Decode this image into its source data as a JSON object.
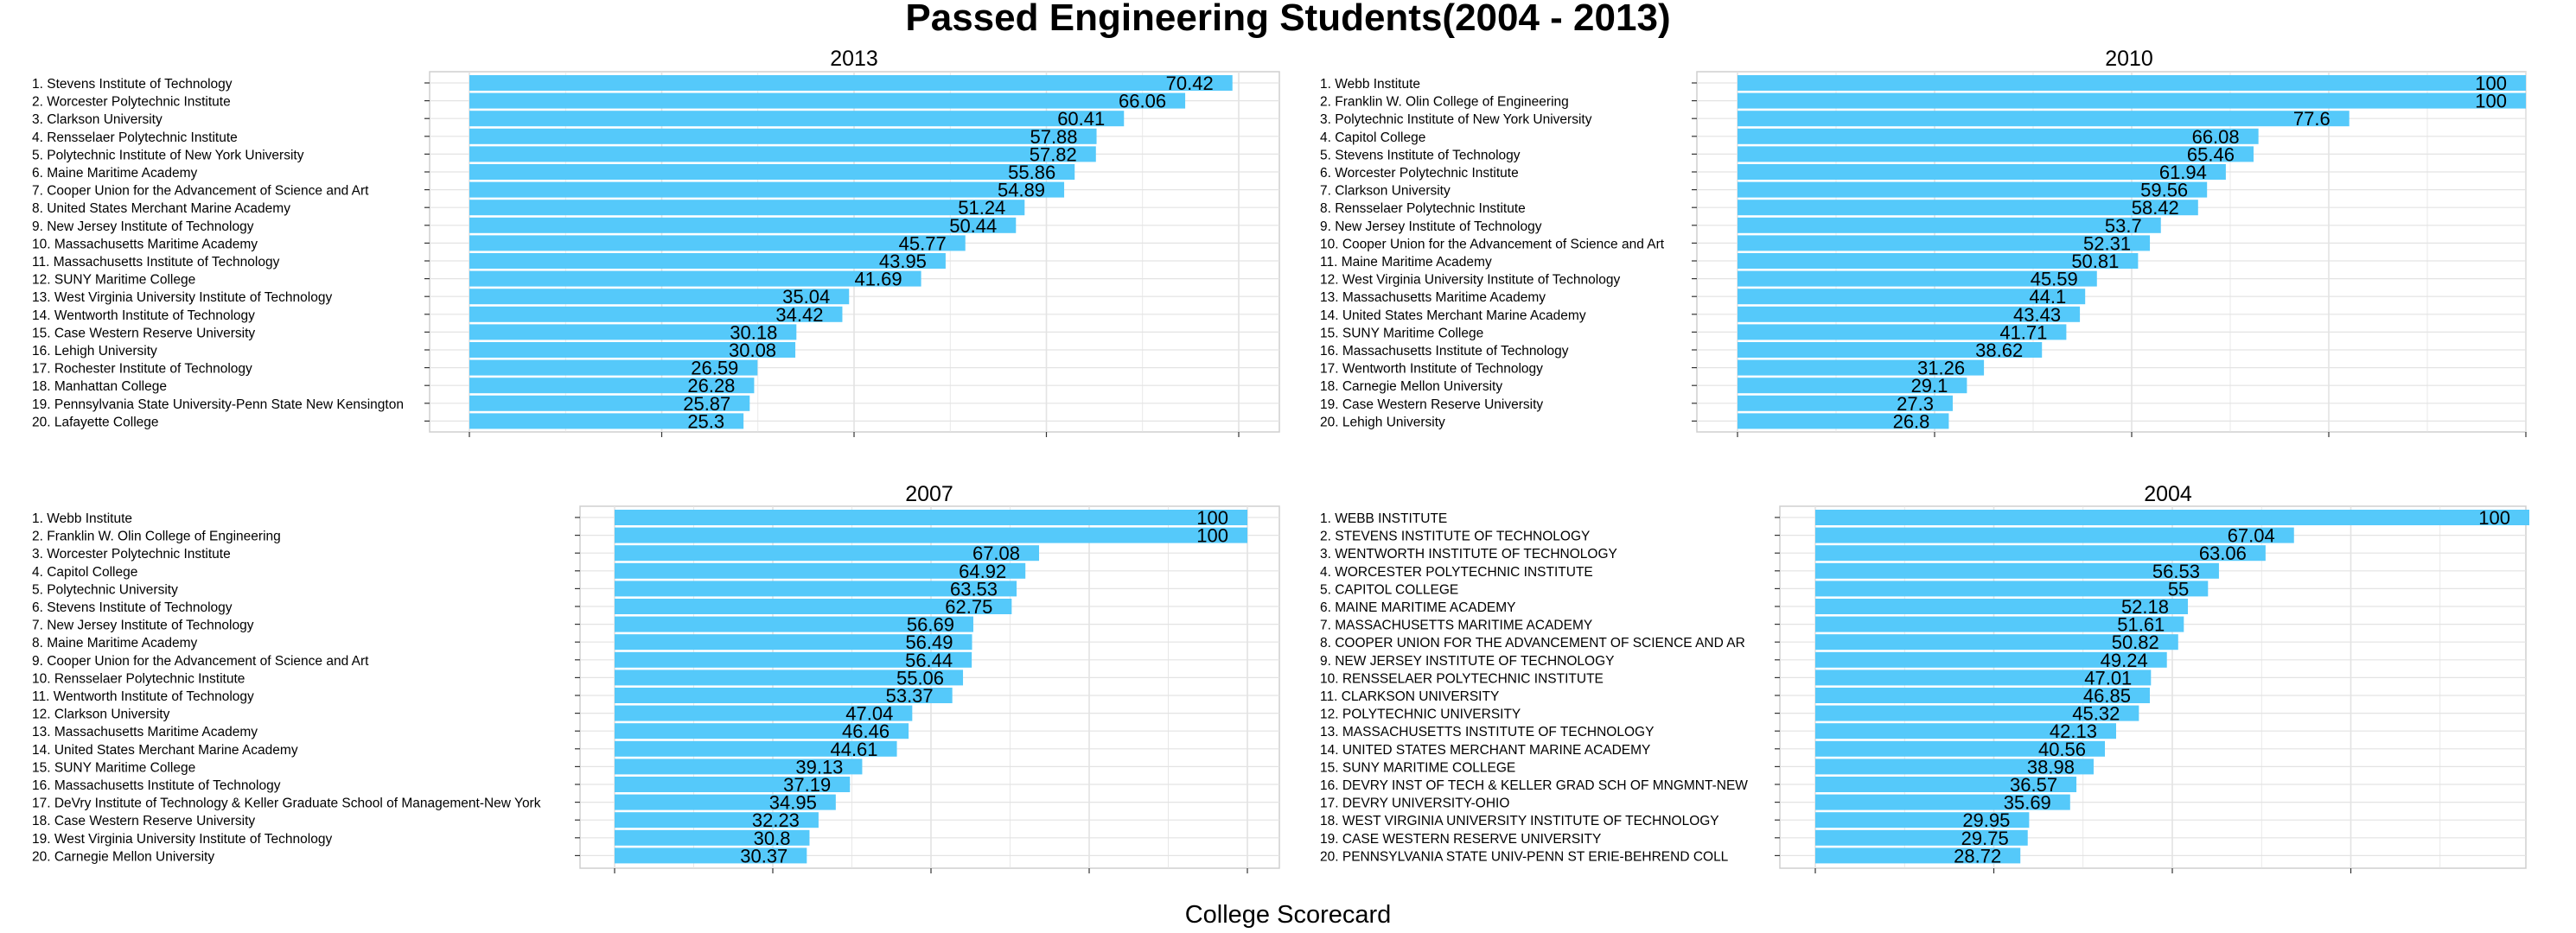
{
  "title": "Passed Engineering Students(2004 - 2013)",
  "caption": "College Scorecard",
  "colors": {
    "bar": "#55c9fa",
    "grid": "#e3e3e3",
    "panel_border": "#cfcfcf",
    "text": "#000000"
  },
  "chart_data": [
    {
      "type": "bar",
      "orientation": "horizontal",
      "title": "2013",
      "grid": true,
      "xlim": [
        0,
        71
      ],
      "categories": [
        "1. Stevens Institute of Technology",
        "2. Worcester Polytechnic Institute",
        "3. Clarkson University",
        "4. Rensselaer Polytechnic Institute",
        "5. Polytechnic Institute of New York University",
        "6. Maine Maritime Academy",
        "7. Cooper Union for the Advancement of Science and Art",
        "8. United States Merchant Marine Academy",
        "9. New Jersey Institute of Technology",
        "10. Massachusetts Maritime Academy",
        "11. Massachusetts Institute of Technology",
        "12. SUNY Maritime College",
        "13. West Virginia University Institute of Technology",
        "14. Wentworth Institute of Technology",
        "15. Case Western Reserve University",
        "16. Lehigh University",
        "17. Rochester Institute of Technology",
        "18. Manhattan College",
        "19. Pennsylvania State University-Penn State New Kensington",
        "20. Lafayette College"
      ],
      "values": [
        70.42,
        66.06,
        60.41,
        57.88,
        57.82,
        55.86,
        54.89,
        51.24,
        50.44,
        45.77,
        43.95,
        41.69,
        35.04,
        34.42,
        30.18,
        30.08,
        26.59,
        26.28,
        25.87,
        25.3
      ],
      "labels": [
        "70.42",
        "66.06",
        "60.41",
        "57.88",
        "57.82",
        "55.86",
        "54.89",
        "51.24",
        "50.44",
        "45.77",
        "43.95",
        "41.69",
        "35.04",
        "34.42",
        "30.18",
        "30.08",
        "26.59",
        "26.28",
        "25.87",
        "25.3"
      ]
    },
    {
      "type": "bar",
      "orientation": "horizontal",
      "title": "2010",
      "grid": true,
      "xlim": [
        0,
        100
      ],
      "categories": [
        "1. Webb Institute",
        "2. Franklin W. Olin College of Engineering",
        "3. Polytechnic Institute of New York University",
        "4. Capitol College",
        "5. Stevens Institute of Technology",
        "6. Worcester Polytechnic Institute",
        "7. Clarkson University",
        "8. Rensselaer Polytechnic Institute",
        "9. New Jersey Institute of Technology",
        "10. Cooper Union for the Advancement of Science and Art",
        "11. Maine Maritime Academy",
        "12. West Virginia University Institute of Technology",
        "13. Massachusetts Maritime Academy",
        "14. United States Merchant Marine Academy",
        "15. SUNY Maritime College",
        "16. Massachusetts Institute of Technology",
        "17. Wentworth Institute of Technology",
        "18. Carnegie Mellon University",
        "19. Case Western Reserve University",
        "20. Lehigh University"
      ],
      "values": [
        100,
        100,
        77.6,
        66.08,
        65.46,
        61.94,
        59.56,
        58.42,
        53.7,
        52.31,
        50.81,
        45.59,
        44.1,
        43.43,
        41.71,
        38.62,
        31.26,
        29.1,
        27.3,
        26.8
      ],
      "labels": [
        "100",
        "100",
        "77.6",
        "66.08",
        "65.46",
        "61.94",
        "59.56",
        "58.42",
        "53.7",
        "52.31",
        "50.81",
        "45.59",
        "44.1",
        "43.43",
        "41.71",
        "38.62",
        "31.26",
        "29.1",
        "27.3",
        "26.8"
      ]
    },
    {
      "type": "bar",
      "orientation": "horizontal",
      "title": "2007",
      "grid": true,
      "xlim": [
        0,
        100
      ],
      "categories": [
        "1. Webb Institute",
        "2. Franklin W. Olin College of Engineering",
        "3. Worcester Polytechnic Institute",
        "4. Capitol College",
        "5. Polytechnic University",
        "6. Stevens Institute of Technology",
        "7. New Jersey Institute of Technology",
        "8. Maine Maritime Academy",
        "9. Cooper Union for the Advancement of Science and Art",
        "10. Rensselaer Polytechnic Institute",
        "11. Wentworth Institute of Technology",
        "12. Clarkson University",
        "13. Massachusetts Maritime Academy",
        "14. United States Merchant Marine Academy",
        "15. SUNY Maritime College",
        "16. Massachusetts Institute of Technology",
        "17. DeVry Institute of Technology & Keller Graduate School of Management-New York",
        "18. Case Western Reserve University",
        "19. West Virginia University Institute of Technology",
        "20. Carnegie Mellon University"
      ],
      "values": [
        100,
        100,
        67.08,
        64.92,
        63.53,
        62.75,
        56.69,
        56.49,
        56.44,
        55.06,
        53.37,
        47.04,
        46.46,
        44.61,
        39.13,
        37.19,
        34.95,
        32.23,
        30.8,
        30.37
      ],
      "labels": [
        "100",
        "100",
        "67.08",
        "64.92",
        "63.53",
        "62.75",
        "56.69",
        "56.49",
        "56.44",
        "55.06",
        "53.37",
        "47.04",
        "46.46",
        "44.61",
        "39.13",
        "37.19",
        "34.95",
        "32.23",
        "30.8",
        "30.37"
      ]
    },
    {
      "type": "bar",
      "orientation": "horizontal",
      "title": "2004",
      "grid": true,
      "xlim": [
        0,
        100
      ],
      "categories": [
        "1. WEBB INSTITUTE",
        "2. STEVENS INSTITUTE OF TECHNOLOGY",
        "3. WENTWORTH INSTITUTE OF TECHNOLOGY",
        "4. WORCESTER POLYTECHNIC INSTITUTE",
        "5. CAPITOL COLLEGE",
        "6. MAINE MARITIME ACADEMY",
        "7. MASSACHUSETTS MARITIME ACADEMY",
        "8. COOPER UNION FOR THE ADVANCEMENT OF SCIENCE AND AR",
        "9. NEW JERSEY INSTITUTE OF TECHNOLOGY",
        "10. RENSSELAER POLYTECHNIC INSTITUTE",
        "11. CLARKSON UNIVERSITY",
        "12. POLYTECHNIC UNIVERSITY",
        "13. MASSACHUSETTS INSTITUTE OF TECHNOLOGY",
        "14. UNITED STATES MERCHANT MARINE ACADEMY",
        "15. SUNY MARITIME COLLEGE",
        "16. DEVRY INST OF TECH & KELLER GRAD SCH OF MNGMNT-NEW",
        "17. DEVRY UNIVERSITY-OHIO",
        "18. WEST VIRGINIA UNIVERSITY INSTITUTE OF TECHNOLOGY",
        "19. CASE WESTERN RESERVE UNIVERSITY",
        "20. PENNSYLVANIA STATE UNIV-PENN ST ERIE-BEHREND COLL"
      ],
      "values": [
        100,
        67.04,
        63.06,
        56.53,
        55,
        52.18,
        51.61,
        50.82,
        49.24,
        47.01,
        46.85,
        45.32,
        42.13,
        40.56,
        38.98,
        36.57,
        35.69,
        29.95,
        29.75,
        28.72
      ],
      "labels": [
        "100",
        "67.04",
        "63.06",
        "56.53",
        "55",
        "52.18",
        "51.61",
        "50.82",
        "49.24",
        "47.01",
        "46.85",
        "45.32",
        "42.13",
        "40.56",
        "38.98",
        "36.57",
        "35.69",
        "29.95",
        "29.75",
        "28.72"
      ]
    }
  ]
}
